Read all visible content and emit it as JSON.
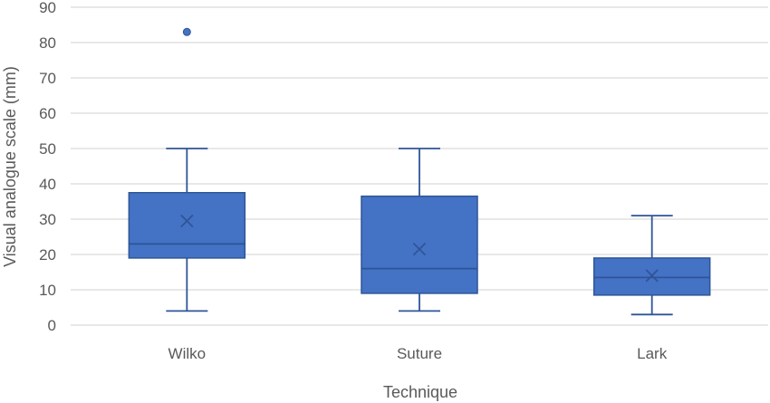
{
  "chart_data": {
    "type": "box",
    "xlabel": "Technique",
    "ylabel": "Visual analogue scale (mm)",
    "ylim": [
      0,
      90
    ],
    "yticks": [
      0,
      10,
      20,
      30,
      40,
      50,
      60,
      70,
      80,
      90
    ],
    "grid": true,
    "legend": "none",
    "categories": [
      "Wilko",
      "Suture",
      "Lark"
    ],
    "boxes": [
      {
        "category": "Wilko",
        "min": 4,
        "q1": 19,
        "median": 23,
        "q3": 37.5,
        "max": 50,
        "mean": 29.5,
        "outliers": [
          83
        ]
      },
      {
        "category": "Suture",
        "min": 4,
        "q1": 9,
        "median": 16,
        "q3": 36.5,
        "max": 50,
        "mean": 21.5,
        "outliers": []
      },
      {
        "category": "Lark",
        "min": 3,
        "q1": 8.5,
        "median": 13.5,
        "q3": 19,
        "max": 31,
        "mean": 14,
        "outliers": []
      }
    ]
  },
  "colors": {
    "box_fill": "#4472C4",
    "box_stroke": "#2F5597",
    "gridline": "#D9D9D9",
    "text": "#595959"
  }
}
